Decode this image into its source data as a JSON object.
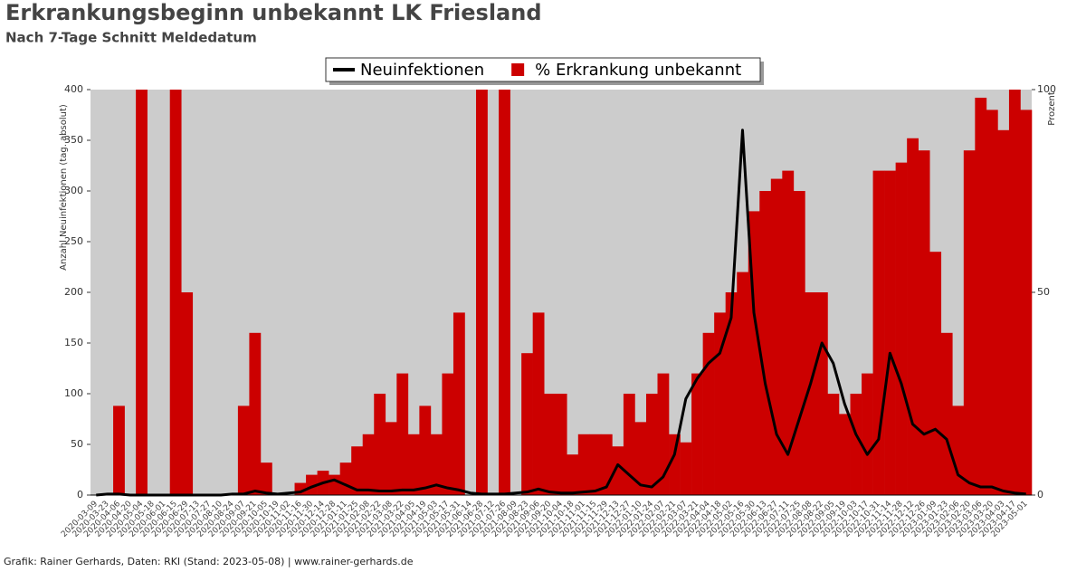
{
  "chart_data": {
    "type": "combo",
    "title": "Erkrankungsbeginn unbekannt LK Friesland",
    "subtitle": "Nach 7-Tage Schnitt Meldedatum",
    "y_label": "Anzahl Neuinfektionen (tag. absolut)",
    "y2_label": "Prozent",
    "footer": "Grafik: Rainer Gerhards, Daten: RKI (Stand: 2023-05-08) | www.rainer-gerhards.de",
    "categories": [
      "2020-03-09",
      "2020-03-23",
      "2020-04-06",
      "2020-04-20",
      "2020-05-04",
      "2020-05-18",
      "2020-06-01",
      "2020-06-15",
      "2020-06-29",
      "2020-07-13",
      "2020-07-27",
      "2020-08-10",
      "2020-08-24",
      "2020-09-07",
      "2020-09-21",
      "2020-10-05",
      "2020-10-19",
      "2020-11-02",
      "2020-11-16",
      "2020-11-30",
      "2020-12-14",
      "2020-12-28",
      "2021-01-11",
      "2021-01-25",
      "2021-02-08",
      "2021-02-22",
      "2021-03-08",
      "2021-03-22",
      "2021-04-05",
      "2021-04-19",
      "2021-05-03",
      "2021-05-17",
      "2021-05-31",
      "2021-06-14",
      "2021-06-28",
      "2021-07-12",
      "2021-07-26",
      "2021-08-09",
      "2021-08-23",
      "2021-09-06",
      "2021-09-20",
      "2021-10-04",
      "2021-10-18",
      "2021-11-01",
      "2021-11-15",
      "2021-11-29",
      "2021-12-13",
      "2021-12-27",
      "2022-01-10",
      "2022-01-24",
      "2022-02-07",
      "2022-02-21",
      "2022-03-07",
      "2022-03-21",
      "2022-04-04",
      "2022-04-18",
      "2022-05-02",
      "2022-05-16",
      "2022-05-30",
      "2022-06-13",
      "2022-06-27",
      "2022-07-11",
      "2022-07-25",
      "2022-08-08",
      "2022-08-22",
      "2022-09-05",
      "2022-09-19",
      "2022-10-03",
      "2022-10-17",
      "2022-10-31",
      "2022-11-14",
      "2022-11-28",
      "2022-12-12",
      "2022-12-26",
      "2023-01-09",
      "2023-01-23",
      "2023-02-06",
      "2023-02-20",
      "2023-03-06",
      "2023-03-20",
      "2023-04-03",
      "2023-04-17",
      "2023-05-01"
    ],
    "series": [
      {
        "name": "% Erkrankung unbekannt",
        "color": "#cc0000",
        "type": "bar",
        "axis": "y2",
        "values": [
          0,
          0,
          22,
          0,
          100,
          0,
          0,
          100,
          50,
          0,
          0,
          0,
          0,
          22,
          40,
          8,
          0,
          0,
          3,
          5,
          6,
          5,
          8,
          12,
          15,
          25,
          18,
          30,
          15,
          22,
          15,
          30,
          45,
          0,
          100,
          0,
          100,
          0,
          35,
          45,
          25,
          25,
          10,
          15,
          15,
          15,
          12,
          25,
          18,
          25,
          30,
          15,
          13,
          30,
          40,
          45,
          50,
          55,
          70,
          75,
          78,
          80,
          75,
          50,
          50,
          25,
          20,
          25,
          30,
          80,
          80,
          82,
          88,
          85,
          60,
          40,
          22,
          85,
          98,
          95,
          90,
          100,
          95
        ]
      },
      {
        "name": "Neuinfektionen",
        "color": "#000000",
        "type": "line",
        "values": [
          0,
          1,
          1,
          0,
          0,
          0,
          0,
          0,
          0,
          0,
          0,
          0,
          1,
          1,
          4,
          2,
          1,
          2,
          3,
          8,
          12,
          15,
          10,
          5,
          5,
          4,
          4,
          5,
          5,
          7,
          10,
          7,
          5,
          2,
          1,
          1,
          1,
          2,
          3,
          6,
          3,
          2,
          2,
          3,
          4,
          8,
          30,
          20,
          10,
          8,
          18,
          40,
          95,
          115,
          130,
          140,
          175,
          360,
          180,
          110,
          60,
          40,
          75,
          110,
          150,
          130,
          90,
          60,
          40,
          55,
          140,
          110,
          70,
          60,
          65,
          55,
          20,
          12,
          8,
          8,
          4,
          2,
          1
        ]
      }
    ],
    "ylim": [
      0,
      400
    ],
    "yticks": [
      0,
      50,
      100,
      150,
      200,
      250,
      300,
      350,
      400
    ],
    "y2lim": [
      0,
      100
    ],
    "y2ticks": [
      0,
      50,
      100
    ],
    "legend": "top"
  }
}
